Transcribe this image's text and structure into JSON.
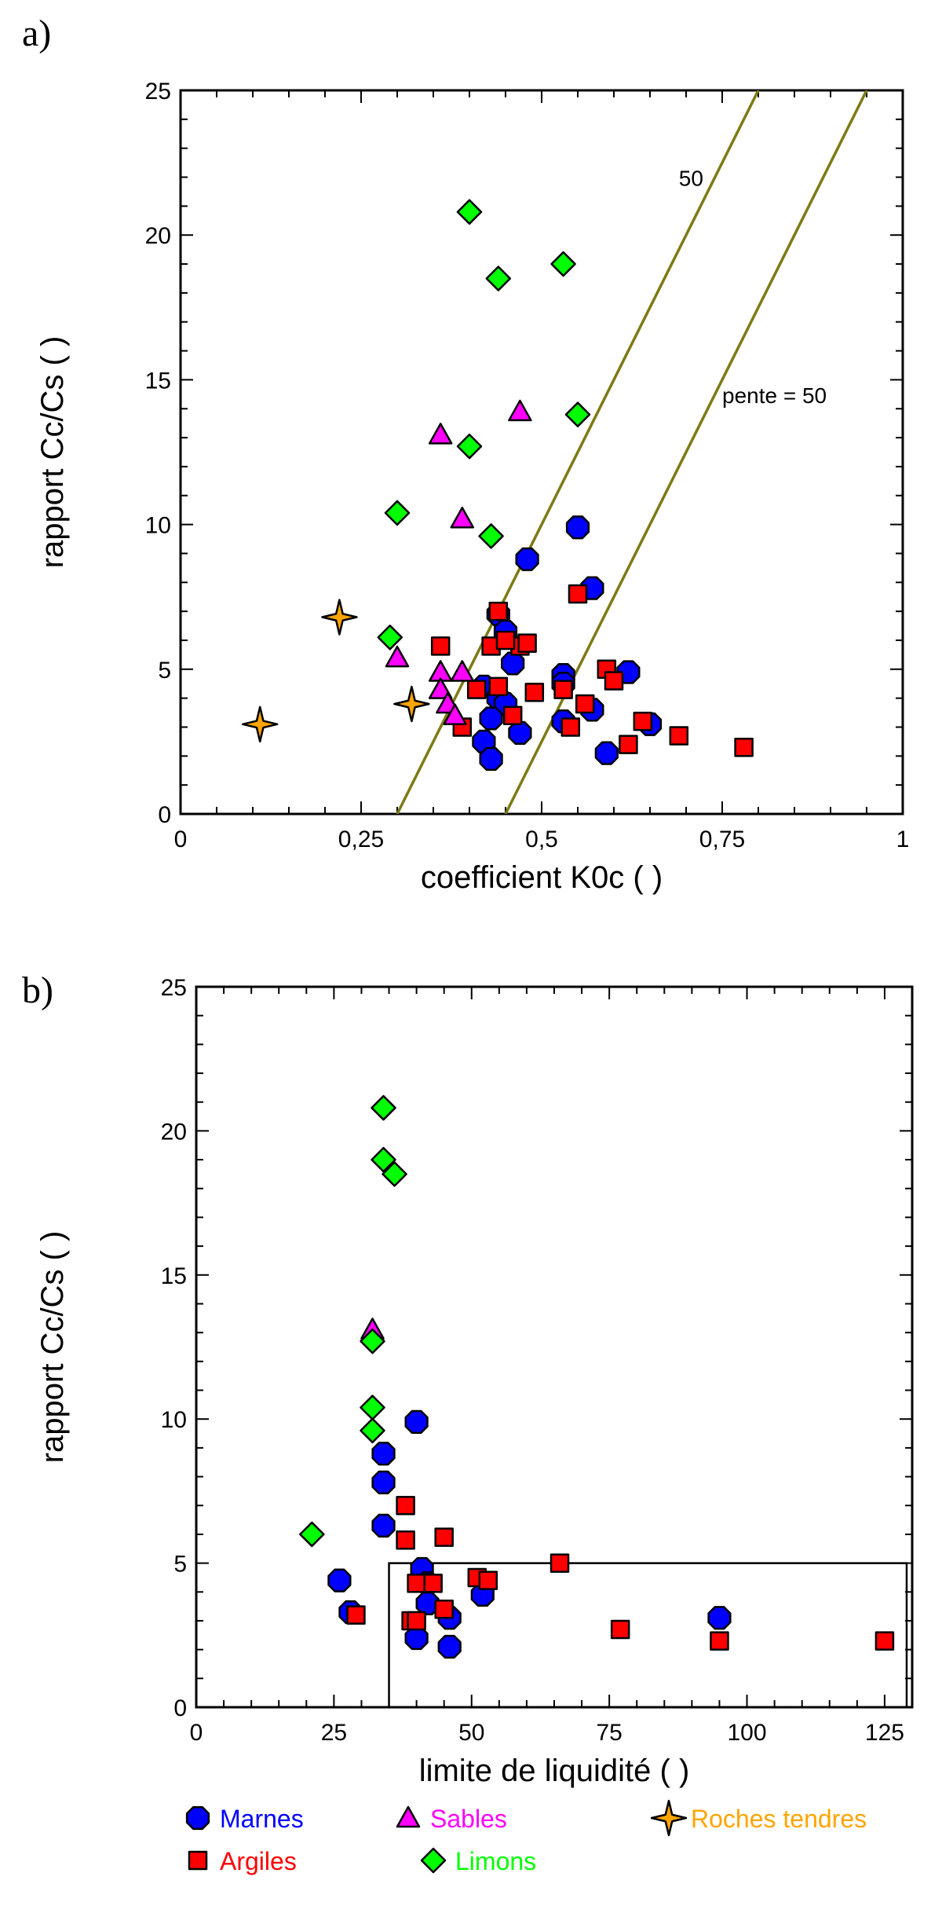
{
  "chart_data": [
    {
      "type": "scatter",
      "panel_label": "a)",
      "xlabel": "coefficient K0c ( )",
      "ylabel": "rapport Cc/Cs ( )",
      "xlim": [
        0,
        1
      ],
      "ylim": [
        0,
        25
      ],
      "x_ticks": [
        0,
        0.25,
        0.5,
        0.75,
        1
      ],
      "x_tick_labels": [
        "0",
        "0,25",
        "0,5",
        "0,75",
        "1"
      ],
      "y_ticks": [
        0,
        5,
        10,
        15,
        20,
        25
      ],
      "y_tick_labels": [
        "0",
        "5",
        "10",
        "15",
        "20",
        "25"
      ],
      "lines": [
        {
          "x": [
            0.3,
            0.8
          ],
          "y": [
            0,
            25
          ],
          "color": "#7d7a14"
        },
        {
          "x": [
            0.45,
            0.95
          ],
          "y": [
            0,
            25
          ],
          "color": "#7d7a14"
        }
      ],
      "annotations": [
        {
          "text": "50",
          "x": 0.69,
          "y": 21.7
        },
        {
          "text": "pente = 50",
          "x": 0.75,
          "y": 14.2
        }
      ],
      "series": [
        {
          "name": "Marnes",
          "marker": "octagon",
          "color": "#0000ff",
          "points": [
            [
              0.48,
              8.8
            ],
            [
              0.55,
              9.9
            ],
            [
              0.57,
              7.8
            ],
            [
              0.44,
              6.9
            ],
            [
              0.45,
              6.3
            ],
            [
              0.46,
              5.2
            ],
            [
              0.53,
              4.8
            ],
            [
              0.53,
              4.5
            ],
            [
              0.42,
              4.4
            ],
            [
              0.44,
              4.0
            ],
            [
              0.45,
              3.8
            ],
            [
              0.43,
              3.3
            ],
            [
              0.53,
              3.2
            ],
            [
              0.57,
              3.6
            ],
            [
              0.62,
              4.9
            ],
            [
              0.65,
              3.1
            ],
            [
              0.47,
              2.8
            ],
            [
              0.42,
              2.5
            ],
            [
              0.43,
              1.9
            ],
            [
              0.59,
              2.1
            ]
          ]
        },
        {
          "name": "Argiles",
          "marker": "square",
          "color": "#ff0000",
          "points": [
            [
              0.55,
              7.6
            ],
            [
              0.44,
              7.0
            ],
            [
              0.36,
              5.8
            ],
            [
              0.43,
              5.8
            ],
            [
              0.47,
              5.8
            ],
            [
              0.48,
              5.9
            ],
            [
              0.45,
              6.0
            ],
            [
              0.59,
              5.0
            ],
            [
              0.6,
              4.6
            ],
            [
              0.44,
              4.4
            ],
            [
              0.41,
              4.3
            ],
            [
              0.49,
              4.2
            ],
            [
              0.53,
              4.3
            ],
            [
              0.56,
              3.8
            ],
            [
              0.46,
              3.4
            ],
            [
              0.39,
              3.0
            ],
            [
              0.54,
              3.0
            ],
            [
              0.64,
              3.2
            ],
            [
              0.69,
              2.7
            ],
            [
              0.62,
              2.4
            ],
            [
              0.78,
              2.3
            ]
          ]
        },
        {
          "name": "Sables",
          "marker": "triangle",
          "color": "#ff00ff",
          "points": [
            [
              0.36,
              13.1
            ],
            [
              0.47,
              13.9
            ],
            [
              0.39,
              10.2
            ],
            [
              0.3,
              5.4
            ],
            [
              0.36,
              4.9
            ],
            [
              0.39,
              4.9
            ],
            [
              0.36,
              4.3
            ],
            [
              0.37,
              3.8
            ],
            [
              0.38,
              3.4
            ]
          ]
        },
        {
          "name": "Limons",
          "marker": "diamond",
          "color": "#00ff00",
          "points": [
            [
              0.4,
              20.8
            ],
            [
              0.53,
              19.0
            ],
            [
              0.44,
              18.5
            ],
            [
              0.55,
              13.8
            ],
            [
              0.4,
              12.7
            ],
            [
              0.3,
              10.4
            ],
            [
              0.43,
              9.6
            ],
            [
              0.29,
              6.1
            ]
          ]
        },
        {
          "name": "Roches tendres",
          "marker": "star",
          "color": "#ffa500",
          "points": [
            [
              0.22,
              6.8
            ],
            [
              0.32,
              3.8
            ],
            [
              0.11,
              3.1
            ]
          ]
        }
      ]
    },
    {
      "type": "scatter",
      "panel_label": "b)",
      "xlabel": "limite de liquidité ( )",
      "ylabel": "rapport Cc/Cs ( )",
      "xlim": [
        0,
        130
      ],
      "ylim": [
        0,
        25
      ],
      "x_ticks": [
        0,
        25,
        50,
        75,
        100,
        125
      ],
      "x_tick_labels": [
        "0",
        "25",
        "50",
        "75",
        "100",
        "125"
      ],
      "y_ticks": [
        0,
        5,
        10,
        15,
        20,
        25
      ],
      "y_tick_labels": [
        "0",
        "5",
        "10",
        "15",
        "20",
        "25"
      ],
      "region_box": {
        "x": [
          35,
          129
        ],
        "y": [
          0,
          5
        ]
      },
      "series": [
        {
          "name": "Marnes",
          "marker": "octagon",
          "color": "#0000ff",
          "points": [
            [
              40,
              9.9
            ],
            [
              34,
              8.8
            ],
            [
              34,
              7.8
            ],
            [
              34,
              6.3
            ],
            [
              26,
              4.4
            ],
            [
              28,
              3.3
            ],
            [
              41,
              4.8
            ],
            [
              42,
              4.3
            ],
            [
              42,
              3.6
            ],
            [
              46,
              3.1
            ],
            [
              40,
              2.4
            ],
            [
              46,
              2.1
            ],
            [
              52,
              3.9
            ],
            [
              95,
              3.1
            ]
          ]
        },
        {
          "name": "Argiles",
          "marker": "square",
          "color": "#ff0000",
          "points": [
            [
              38,
              7.0
            ],
            [
              45,
              5.9
            ],
            [
              38,
              5.8
            ],
            [
              66,
              5.0
            ],
            [
              51,
              4.5
            ],
            [
              53,
              4.4
            ],
            [
              40,
              4.3
            ],
            [
              43,
              4.3
            ],
            [
              45,
              3.4
            ],
            [
              39,
              3.0
            ],
            [
              40,
              3.0
            ],
            [
              29,
              3.2
            ],
            [
              77,
              2.7
            ],
            [
              95,
              2.3
            ],
            [
              125,
              2.3
            ]
          ]
        },
        {
          "name": "Sables",
          "marker": "triangle",
          "color": "#ff00ff",
          "points": [
            [
              32,
              13.1
            ]
          ]
        },
        {
          "name": "Limons",
          "marker": "diamond",
          "color": "#00ff00",
          "points": [
            [
              34,
              20.8
            ],
            [
              34,
              19.0
            ],
            [
              36,
              18.5
            ],
            [
              32,
              12.7
            ],
            [
              32,
              10.4
            ],
            [
              32,
              9.6
            ],
            [
              21,
              6.0
            ]
          ]
        }
      ]
    }
  ],
  "legend": [
    {
      "name": "Marnes",
      "marker": "octagon",
      "color": "#0000ff"
    },
    {
      "name": "Sables",
      "marker": "triangle",
      "color": "#ff00ff"
    },
    {
      "name": "Roches tendres",
      "marker": "star",
      "color": "#ffa500"
    },
    {
      "name": "Argiles",
      "marker": "square",
      "color": "#ff0000"
    },
    {
      "name": "Limons",
      "marker": "diamond",
      "color": "#00ff00"
    }
  ]
}
